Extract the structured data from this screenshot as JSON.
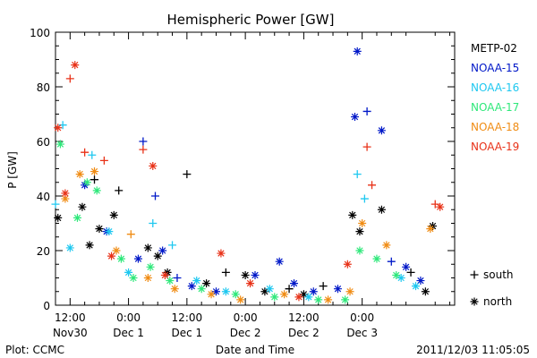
{
  "chart_data": {
    "type": "scatter",
    "title": "Hemispheric Power [GW]",
    "ylabel": "P [GW]",
    "xlabel": "Date and Time",
    "ylim": [
      0,
      100
    ],
    "yticks": [
      0,
      20,
      40,
      60,
      80,
      100
    ],
    "xlim": [
      "2011-11-30T09:00",
      "2011-12-03T19:00"
    ],
    "xticks": [
      {
        "t": "2011-11-30T12:00",
        "line1": "12:00",
        "line2": "Nov30"
      },
      {
        "t": "2011-12-01T00:00",
        "line1": "0:00",
        "line2": "Dec 1"
      },
      {
        "t": "2011-12-01T12:00",
        "line1": "12:00",
        "line2": "Dec 1"
      },
      {
        "t": "2011-12-02T00:00",
        "line1": "0:00",
        "line2": "Dec 2"
      },
      {
        "t": "2011-12-02T12:00",
        "line1": "12:00",
        "line2": "Dec 2"
      },
      {
        "t": "2011-12-03T00:00",
        "line1": "0:00",
        "line2": "Dec 3"
      }
    ],
    "grid": false,
    "legend_position": "right",
    "markers": {
      "south": "+",
      "north": "*"
    },
    "marker_legend": [
      {
        "symbol": "+",
        "label": "south"
      },
      {
        "symbol": "*",
        "label": "north"
      }
    ],
    "series": [
      {
        "name": "METP-02",
        "color": "#000000",
        "points": [
          {
            "t": "2011-11-30T09:30",
            "v": 32,
            "h": "north"
          },
          {
            "t": "2011-11-30T14:30",
            "v": 36,
            "h": "north"
          },
          {
            "t": "2011-11-30T16:00",
            "v": 22,
            "h": "north"
          },
          {
            "t": "2011-11-30T17:00",
            "v": 46,
            "h": "south"
          },
          {
            "t": "2011-11-30T18:00",
            "v": 28,
            "h": "north"
          },
          {
            "t": "2011-11-30T21:00",
            "v": 33,
            "h": "north"
          },
          {
            "t": "2011-11-30T22:00",
            "v": 42,
            "h": "south"
          },
          {
            "t": "2011-12-01T04:00",
            "v": 21,
            "h": "north"
          },
          {
            "t": "2011-12-01T06:00",
            "v": 18,
            "h": "north"
          },
          {
            "t": "2011-12-01T08:00",
            "v": 12,
            "h": "north"
          },
          {
            "t": "2011-12-01T12:00",
            "v": 48,
            "h": "south"
          },
          {
            "t": "2011-12-01T16:00",
            "v": 8,
            "h": "north"
          },
          {
            "t": "2011-12-01T20:00",
            "v": 12,
            "h": "south"
          },
          {
            "t": "2011-12-02T00:00",
            "v": 11,
            "h": "north"
          },
          {
            "t": "2011-12-02T04:00",
            "v": 5,
            "h": "north"
          },
          {
            "t": "2011-12-02T09:00",
            "v": 6,
            "h": "south"
          },
          {
            "t": "2011-12-02T12:00",
            "v": 4,
            "h": "north"
          },
          {
            "t": "2011-12-02T16:00",
            "v": 7,
            "h": "south"
          },
          {
            "t": "2011-12-02T22:00",
            "v": 33,
            "h": "north"
          },
          {
            "t": "2011-12-02T23:30",
            "v": 27,
            "h": "north"
          },
          {
            "t": "2011-12-03T04:00",
            "v": 35,
            "h": "north"
          },
          {
            "t": "2011-12-03T10:00",
            "v": 12,
            "h": "south"
          },
          {
            "t": "2011-12-03T13:00",
            "v": 5,
            "h": "north"
          },
          {
            "t": "2011-12-03T14:30",
            "v": 29,
            "h": "north"
          }
        ]
      },
      {
        "name": "NOAA-15",
        "color": "#0018c8",
        "points": [
          {
            "t": "2011-11-30T15:00",
            "v": 44,
            "h": "north"
          },
          {
            "t": "2011-11-30T19:30",
            "v": 27,
            "h": "north"
          },
          {
            "t": "2011-12-01T02:00",
            "v": 17,
            "h": "north"
          },
          {
            "t": "2011-12-01T03:00",
            "v": 60,
            "h": "south"
          },
          {
            "t": "2011-12-01T05:30",
            "v": 40,
            "h": "south"
          },
          {
            "t": "2011-12-01T07:00",
            "v": 20,
            "h": "north"
          },
          {
            "t": "2011-12-01T10:00",
            "v": 10,
            "h": "south"
          },
          {
            "t": "2011-12-01T13:00",
            "v": 7,
            "h": "north"
          },
          {
            "t": "2011-12-01T18:00",
            "v": 5,
            "h": "north"
          },
          {
            "t": "2011-12-02T02:00",
            "v": 11,
            "h": "north"
          },
          {
            "t": "2011-12-02T07:00",
            "v": 16,
            "h": "north"
          },
          {
            "t": "2011-12-02T10:00",
            "v": 8,
            "h": "north"
          },
          {
            "t": "2011-12-02T14:00",
            "v": 5,
            "h": "north"
          },
          {
            "t": "2011-12-02T19:00",
            "v": 6,
            "h": "north"
          },
          {
            "t": "2011-12-02T22:30",
            "v": 69,
            "h": "north"
          },
          {
            "t": "2011-12-02T23:00",
            "v": 93,
            "h": "north"
          },
          {
            "t": "2011-12-03T01:00",
            "v": 71,
            "h": "south"
          },
          {
            "t": "2011-12-03T04:00",
            "v": 64,
            "h": "north"
          },
          {
            "t": "2011-12-03T06:00",
            "v": 16,
            "h": "south"
          },
          {
            "t": "2011-12-03T09:00",
            "v": 14,
            "h": "north"
          },
          {
            "t": "2011-12-03T12:00",
            "v": 9,
            "h": "north"
          }
        ]
      },
      {
        "name": "NOAA-16",
        "color": "#1ec8f0",
        "points": [
          {
            "t": "2011-11-30T09:00",
            "v": 37,
            "h": "south"
          },
          {
            "t": "2011-11-30T10:30",
            "v": 66,
            "h": "south"
          },
          {
            "t": "2011-11-30T12:00",
            "v": 21,
            "h": "north"
          },
          {
            "t": "2011-11-30T16:30",
            "v": 55,
            "h": "south"
          },
          {
            "t": "2011-11-30T20:00",
            "v": 27,
            "h": "north"
          },
          {
            "t": "2011-12-01T00:00",
            "v": 12,
            "h": "north"
          },
          {
            "t": "2011-12-01T05:00",
            "v": 30,
            "h": "south"
          },
          {
            "t": "2011-12-01T09:00",
            "v": 22,
            "h": "south"
          },
          {
            "t": "2011-12-01T14:00",
            "v": 9,
            "h": "north"
          },
          {
            "t": "2011-12-01T20:00",
            "v": 5,
            "h": "north"
          },
          {
            "t": "2011-12-02T05:00",
            "v": 6,
            "h": "north"
          },
          {
            "t": "2011-12-02T13:00",
            "v": 3,
            "h": "north"
          },
          {
            "t": "2011-12-02T23:00",
            "v": 48,
            "h": "south"
          },
          {
            "t": "2011-12-03T00:30",
            "v": 39,
            "h": "south"
          },
          {
            "t": "2011-12-03T08:00",
            "v": 10,
            "h": "north"
          },
          {
            "t": "2011-12-03T11:00",
            "v": 7,
            "h": "north"
          }
        ]
      },
      {
        "name": "NOAA-17",
        "color": "#2ee87a",
        "points": [
          {
            "t": "2011-11-30T10:00",
            "v": 59,
            "h": "north"
          },
          {
            "t": "2011-11-30T13:30",
            "v": 32,
            "h": "north"
          },
          {
            "t": "2011-11-30T15:30",
            "v": 45,
            "h": "north"
          },
          {
            "t": "2011-11-30T17:30",
            "v": 42,
            "h": "north"
          },
          {
            "t": "2011-11-30T22:30",
            "v": 17,
            "h": "north"
          },
          {
            "t": "2011-12-01T01:00",
            "v": 10,
            "h": "north"
          },
          {
            "t": "2011-12-01T04:30",
            "v": 14,
            "h": "north"
          },
          {
            "t": "2011-12-01T08:30",
            "v": 9,
            "h": "north"
          },
          {
            "t": "2011-12-01T15:00",
            "v": 6,
            "h": "north"
          },
          {
            "t": "2011-12-01T22:00",
            "v": 4,
            "h": "north"
          },
          {
            "t": "2011-12-02T06:00",
            "v": 3,
            "h": "north"
          },
          {
            "t": "2011-12-02T15:00",
            "v": 2,
            "h": "north"
          },
          {
            "t": "2011-12-02T20:30",
            "v": 2,
            "h": "north"
          },
          {
            "t": "2011-12-02T23:30",
            "v": 20,
            "h": "north"
          },
          {
            "t": "2011-12-03T03:00",
            "v": 17,
            "h": "north"
          },
          {
            "t": "2011-12-03T07:00",
            "v": 11,
            "h": "north"
          }
        ]
      },
      {
        "name": "NOAA-18",
        "color": "#f08c14",
        "points": [
          {
            "t": "2011-11-30T11:00",
            "v": 39,
            "h": "north"
          },
          {
            "t": "2011-11-30T14:00",
            "v": 48,
            "h": "north"
          },
          {
            "t": "2011-11-30T17:00",
            "v": 49,
            "h": "north"
          },
          {
            "t": "2011-11-30T21:30",
            "v": 20,
            "h": "north"
          },
          {
            "t": "2011-12-01T00:30",
            "v": 26,
            "h": "south"
          },
          {
            "t": "2011-12-01T04:00",
            "v": 10,
            "h": "north"
          },
          {
            "t": "2011-12-01T09:30",
            "v": 6,
            "h": "north"
          },
          {
            "t": "2011-12-01T17:00",
            "v": 4,
            "h": "north"
          },
          {
            "t": "2011-12-01T23:00",
            "v": 2,
            "h": "north"
          },
          {
            "t": "2011-12-02T08:00",
            "v": 4,
            "h": "north"
          },
          {
            "t": "2011-12-02T17:00",
            "v": 2,
            "h": "north"
          },
          {
            "t": "2011-12-02T21:30",
            "v": 5,
            "h": "north"
          },
          {
            "t": "2011-12-03T00:00",
            "v": 30,
            "h": "north"
          },
          {
            "t": "2011-12-03T05:00",
            "v": 22,
            "h": "north"
          },
          {
            "t": "2011-12-03T14:00",
            "v": 28,
            "h": "north"
          }
        ]
      },
      {
        "name": "NOAA-19",
        "color": "#e83218",
        "points": [
          {
            "t": "2011-11-30T09:30",
            "v": 65,
            "h": "north"
          },
          {
            "t": "2011-11-30T12:00",
            "v": 83,
            "h": "south"
          },
          {
            "t": "2011-11-30T13:00",
            "v": 88,
            "h": "north"
          },
          {
            "t": "2011-11-30T11:00",
            "v": 41,
            "h": "north"
          },
          {
            "t": "2011-11-30T15:00",
            "v": 56,
            "h": "south"
          },
          {
            "t": "2011-11-30T19:00",
            "v": 53,
            "h": "south"
          },
          {
            "t": "2011-11-30T20:30",
            "v": 18,
            "h": "north"
          },
          {
            "t": "2011-12-01T03:00",
            "v": 57,
            "h": "south"
          },
          {
            "t": "2011-12-01T05:00",
            "v": 51,
            "h": "north"
          },
          {
            "t": "2011-12-01T07:30",
            "v": 11,
            "h": "north"
          },
          {
            "t": "2011-12-01T19:00",
            "v": 19,
            "h": "north"
          },
          {
            "t": "2011-12-02T01:00",
            "v": 8,
            "h": "north"
          },
          {
            "t": "2011-12-02T11:00",
            "v": 3,
            "h": "north"
          },
          {
            "t": "2011-12-02T21:00",
            "v": 15,
            "h": "north"
          },
          {
            "t": "2011-12-03T01:00",
            "v": 58,
            "h": "south"
          },
          {
            "t": "2011-12-03T02:00",
            "v": 44,
            "h": "south"
          },
          {
            "t": "2011-12-03T15:00",
            "v": 37,
            "h": "south"
          },
          {
            "t": "2011-12-03T16:00",
            "v": 36,
            "h": "north"
          }
        ]
      }
    ]
  },
  "footer": {
    "plot_credit": "Plot: CCMC",
    "timestamp": "2011/12/03 11:05:05"
  }
}
